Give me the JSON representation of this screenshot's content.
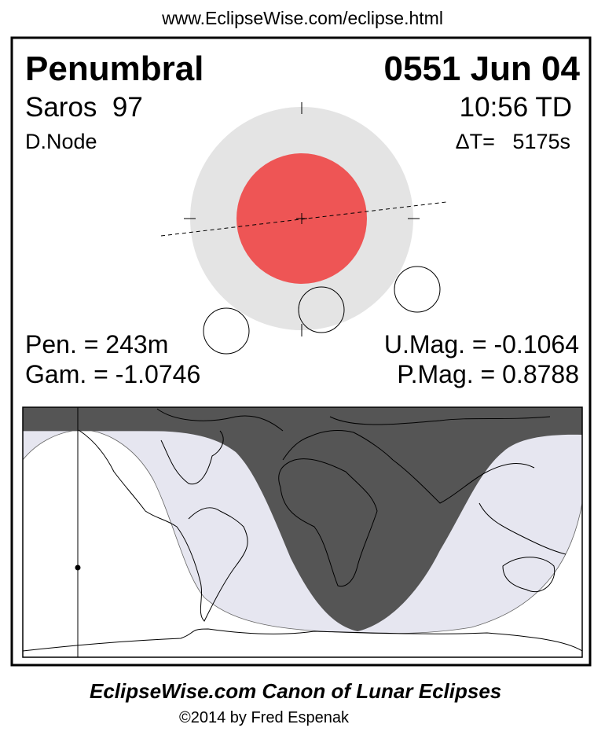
{
  "header": {
    "url": "www.EclipseWise.com/eclipse.html"
  },
  "eclipse": {
    "type": "Penumbral",
    "date": "0551 Jun 04",
    "saros": "Saros  97",
    "time": "10:56 TD",
    "node": "D.Node",
    "delta_t": "ΔT=   5175s",
    "pen_duration": "Pen. = 243m",
    "u_mag": "U.Mag. = -0.1064",
    "gamma": "Gam. = -1.0746",
    "p_mag": "P.Mag. = 0.8788"
  },
  "colors": {
    "umbra": "#ee5555",
    "penumbra": "#e4e4e4",
    "night": "#555555",
    "penumbral_zone": "#e6e6f0"
  },
  "footer": {
    "title": "EclipseWise.com Canon of Lunar Eclipses",
    "copyright": "©2014 by Fred Espenak"
  }
}
